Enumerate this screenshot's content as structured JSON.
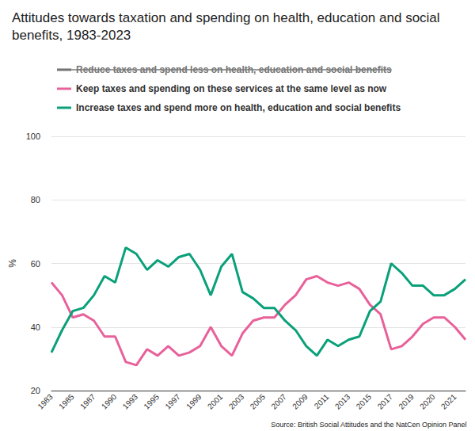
{
  "chart_data": {
    "type": "line",
    "title": "Attitudes towards taxation and spending on health, education and social benefits, 1983-2023",
    "ylabel": "%",
    "source": "Source: British Social Attitudes and the NatCen Opinion Panel",
    "categories": [
      "1983",
      null,
      "1985",
      null,
      "1987",
      null,
      "1990",
      null,
      "1993",
      null,
      "1995",
      null,
      "1997",
      null,
      "1999",
      null,
      "2001",
      null,
      "2003",
      null,
      "2005",
      null,
      "2007",
      null,
      "2009",
      null,
      "2011",
      null,
      "2013",
      null,
      "2015",
      null,
      "2017",
      null,
      "2019",
      null,
      "2020",
      null,
      "2021",
      null
    ],
    "series": [
      {
        "name": "Reduce taxes and spend less on health, education and social benefits",
        "color": "#6b6b6b",
        "values": [
          null,
          null,
          null,
          null,
          null,
          null,
          null,
          null,
          null,
          null,
          null,
          null,
          null,
          null,
          null,
          null,
          null,
          null,
          null,
          null,
          null,
          null,
          null,
          null,
          null,
          null,
          null,
          null,
          null,
          null,
          null,
          null,
          null,
          null,
          null,
          null,
          null,
          null,
          null,
          null
        ]
      },
      {
        "name": "Keep taxes and spending on these services at the same level as now",
        "color": "#e8619a",
        "values": [
          54,
          50,
          43,
          44,
          42,
          37,
          37,
          29,
          28,
          33,
          31,
          34,
          31,
          32,
          34,
          40,
          34,
          31,
          38,
          42,
          43,
          43,
          47,
          50,
          55,
          56,
          54,
          53,
          54,
          52,
          47,
          44,
          33,
          34,
          37,
          41,
          43,
          43,
          40,
          36
        ]
      },
      {
        "name": "Increase taxes and spend more on health, education and social benefits",
        "color": "#0aa07a",
        "values": [
          32,
          39,
          45,
          46,
          50,
          56,
          54,
          65,
          63,
          58,
          61,
          59,
          62,
          63,
          58,
          50,
          59,
          63,
          51,
          49,
          46,
          46,
          42,
          39,
          34,
          31,
          36,
          34,
          36,
          37,
          45,
          48,
          60,
          57,
          53,
          53,
          50,
          50,
          52,
          55
        ]
      }
    ],
    "ylim": [
      20,
      100
    ],
    "yticks": [
      20,
      40,
      60,
      80,
      100
    ],
    "grid": true
  }
}
